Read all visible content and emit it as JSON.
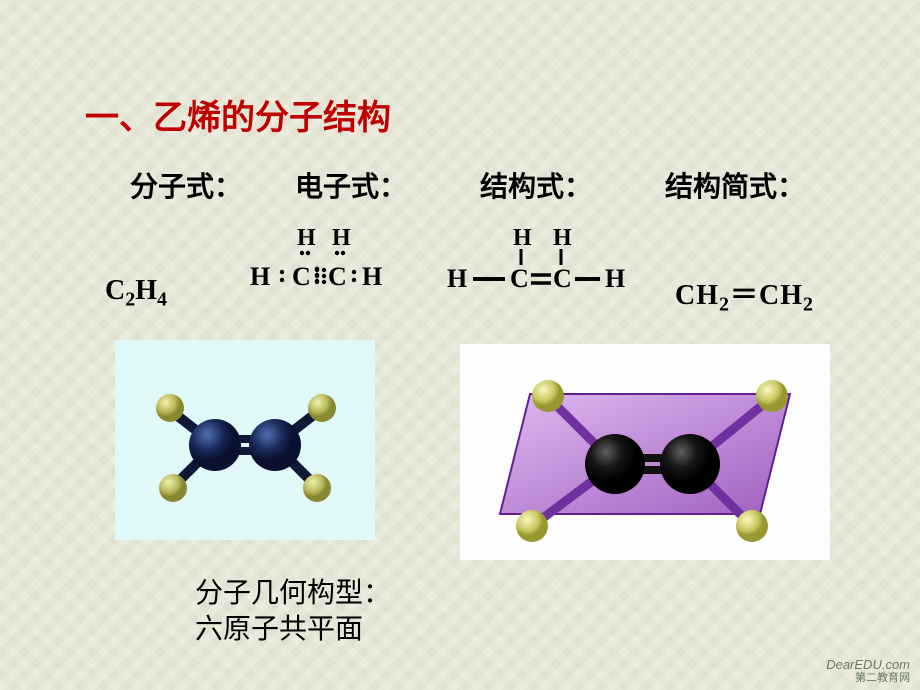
{
  "title": "一、乙烯的分子结构",
  "labels": {
    "molecular": "分子式：",
    "electron": "电子式：",
    "structural": "结构式：",
    "condensed": "结构简式："
  },
  "formulas": {
    "molecular_html": "C<sub>2</sub>H<sub>4</sub>",
    "condensed_html": "CH<sub>2</sub>＝CH<sub>2</sub>",
    "electron": {
      "top_h1": "H",
      "top_h2": "H",
      "left_h": "H",
      "c1": "C",
      "c2": "C",
      "right_h": "H"
    },
    "structural": {
      "top_h1": "H",
      "top_h2": "H",
      "left_h": "H",
      "c1": "C",
      "c2": "C",
      "right_h": "H"
    }
  },
  "geometry": {
    "line1": "分子几何构型：",
    "line2": "六原子共平面"
  },
  "watermark": {
    "en": "DearEDU.com",
    "cn": "第二教育网"
  },
  "model_left": {
    "bg": "#e0f8f8",
    "c_color": "#1a2a5a",
    "h_color": "#c8c868",
    "bond_color": "#101838"
  },
  "model_right": {
    "bg": "#fdfdfd",
    "plane_color": "#c090d0",
    "c_color": "#101010",
    "h_color": "#d8d870",
    "bond_color": "#7030a0"
  }
}
